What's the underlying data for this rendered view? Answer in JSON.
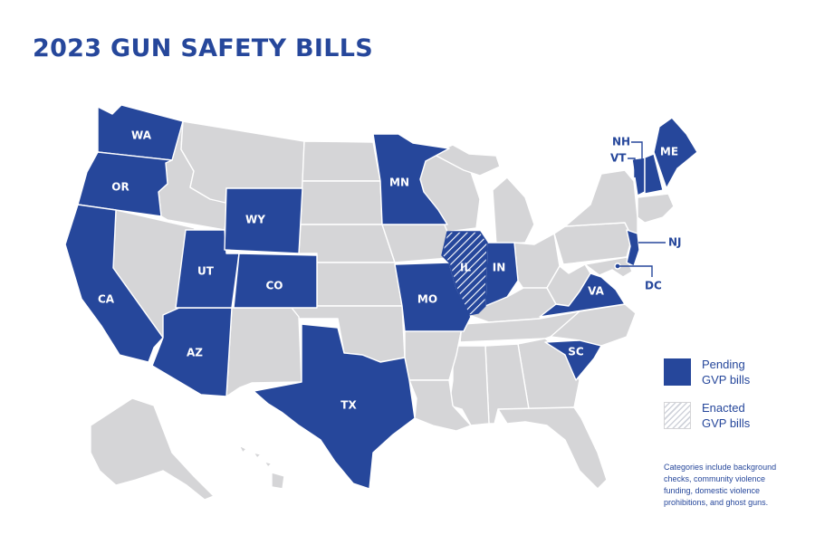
{
  "title": "2023 GUN SAFETY BILLS",
  "colors": {
    "pending": "#26479b",
    "other": "#d5d5d7",
    "enacted_hatch": "#26479b"
  },
  "map": {
    "pending_states": [
      "WA",
      "OR",
      "CA",
      "AZ",
      "UT",
      "WY",
      "CO",
      "TX",
      "MN",
      "MO",
      "IN",
      "VA",
      "SC",
      "NJ",
      "NH",
      "VT",
      "ME",
      "DC"
    ],
    "enacted_states": [
      "IL"
    ],
    "labels": {
      "WA": "WA",
      "OR": "OR",
      "CA": "CA",
      "AZ": "AZ",
      "UT": "UT",
      "WY": "WY",
      "CO": "CO",
      "TX": "TX",
      "MN": "MN",
      "MO": "MO",
      "IL": "IL",
      "IN": "IN",
      "VA": "VA",
      "SC": "SC",
      "ME": "ME"
    },
    "callouts": {
      "NH": "NH",
      "VT": "VT",
      "NJ": "NJ",
      "DC": "DC"
    }
  },
  "legend": [
    {
      "key": "pending",
      "label": "Pending\nGVP bills"
    },
    {
      "key": "enacted",
      "label": "Enacted\nGVP bills"
    }
  ],
  "note": "Categories include background checks, community violence funding, domestic violence prohibitions, and ghost guns."
}
